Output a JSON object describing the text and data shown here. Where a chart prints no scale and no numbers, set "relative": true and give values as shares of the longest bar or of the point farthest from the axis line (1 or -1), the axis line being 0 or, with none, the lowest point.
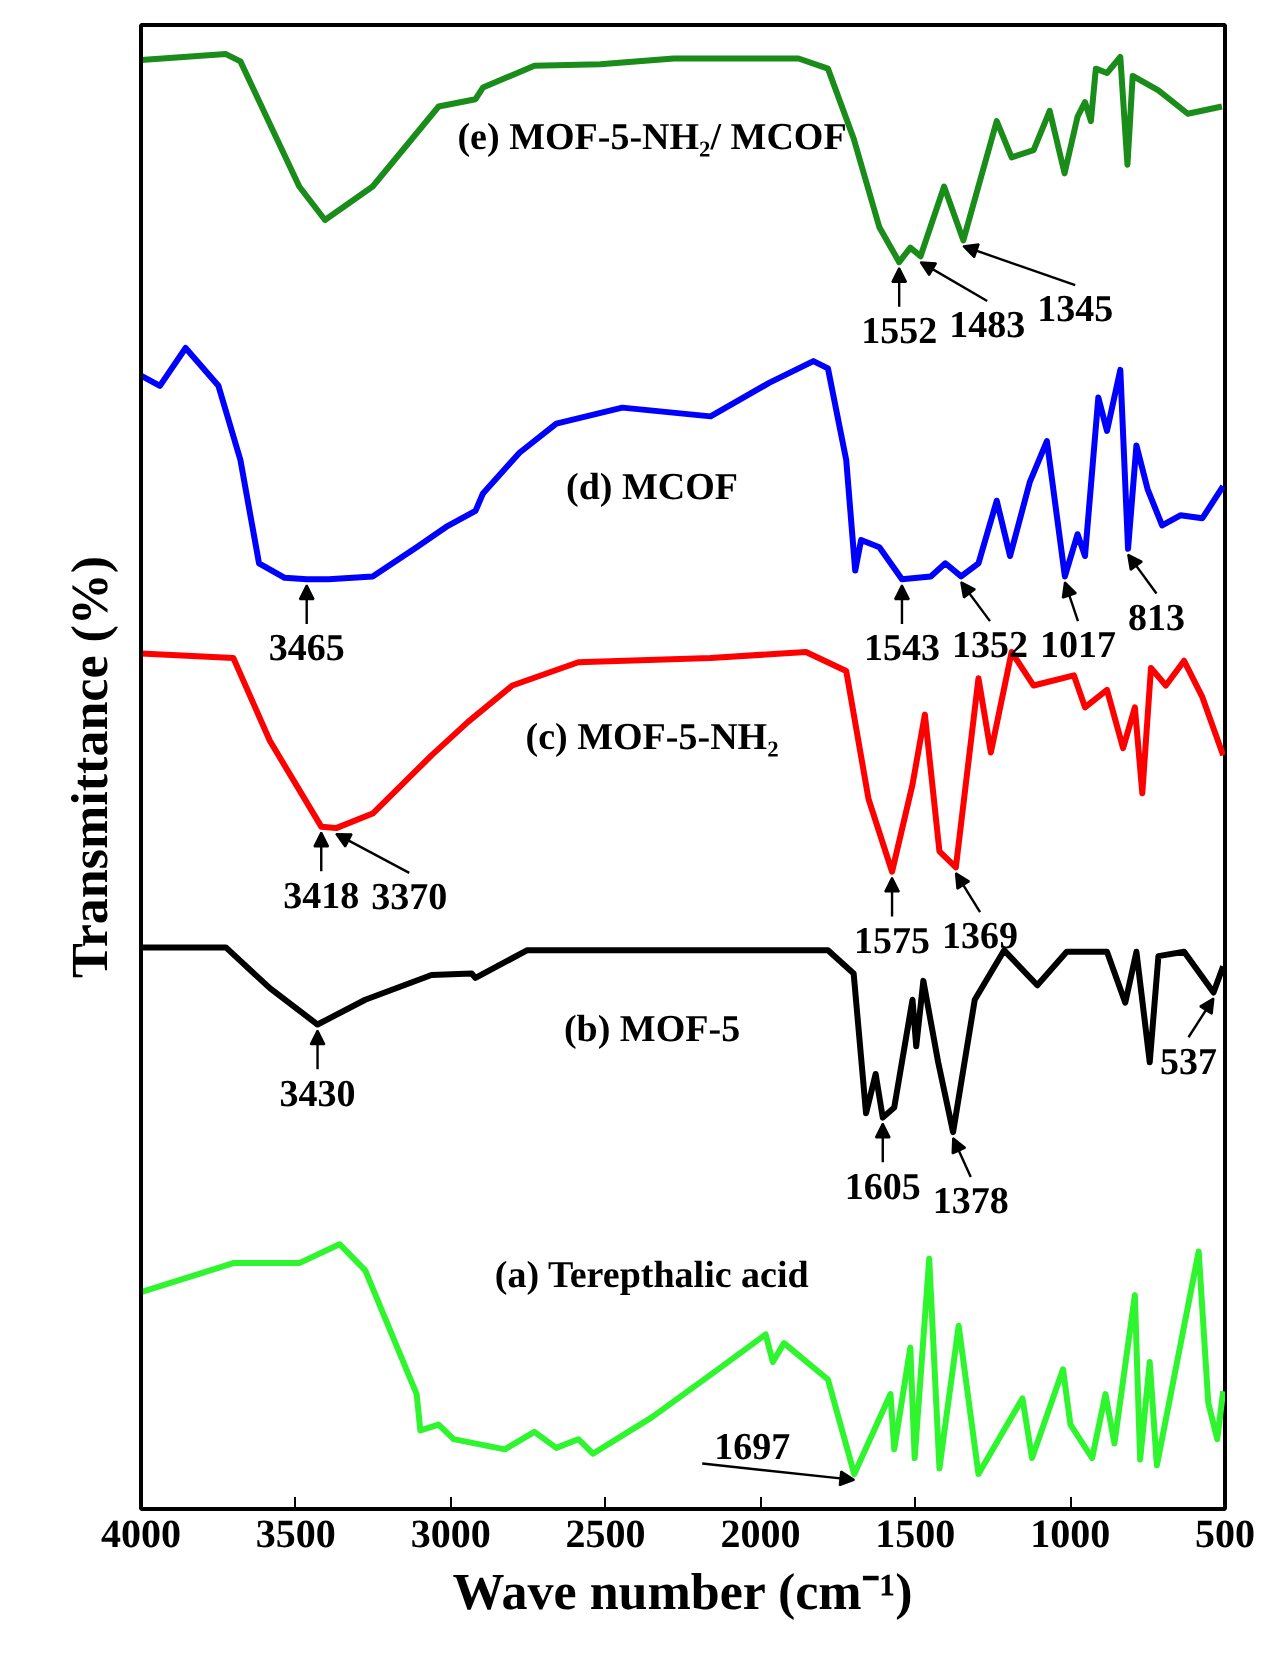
{
  "chart_data": {
    "type": "line",
    "relative": true,
    "xlabel": "Wave number (cm⁻¹)",
    "ylabel": "Transmittance (%)",
    "xlim": [
      4000,
      500
    ],
    "xticks": [
      4000,
      3500,
      3000,
      2500,
      2000,
      1500,
      1000,
      500
    ],
    "grid": false,
    "marker": "none",
    "line_style": "solid",
    "series": [
      {
        "name": "(e) MOF-5-NH₂/ MCOF",
        "color": "#1a8c1a",
        "x": [
          4000,
          3726,
          3679,
          3584,
          3489,
          3406,
          3252,
          3039,
          2920,
          2896,
          2730,
          2517,
          2280,
          1877,
          1782,
          1699,
          1616,
          1552,
          1516,
          1483,
          1407,
          1345,
          1237,
          1189,
          1118,
          1066,
          1018,
          976,
          952,
          933,
          917,
          881,
          838,
          815,
          798,
          715,
          620,
          510
        ],
        "values": [
          0.996,
          1.0,
          0.995,
          0.952,
          0.909,
          0.886,
          0.909,
          0.964,
          0.969,
          0.977,
          0.992,
          0.993,
          0.997,
          0.997,
          0.99,
          0.942,
          0.881,
          0.857,
          0.867,
          0.861,
          0.909,
          0.872,
          0.954,
          0.929,
          0.934,
          0.961,
          0.918,
          0.957,
          0.967,
          0.954,
          0.99,
          0.987,
          0.998,
          0.924,
          0.985,
          0.975,
          0.959,
          0.964
        ]
      },
      {
        "name": "(d) MCOF",
        "color": "#0000ff",
        "x": [
          4000,
          3939,
          3856,
          3750,
          3679,
          3619,
          3536,
          3465,
          3394,
          3252,
          3110,
          3015,
          2920,
          2896,
          2778,
          2659,
          2446,
          2161,
          1972,
          1829,
          1782,
          1723,
          1694,
          1675,
          1616,
          1543,
          1450,
          1403,
          1352,
          1296,
          1237,
          1194,
          1130,
          1075,
          1017,
          976,
          952,
          909,
          881,
          838,
          813,
          786,
          750,
          703,
          644,
          573,
          506
        ],
        "values": [
          0.779,
          0.772,
          0.798,
          0.772,
          0.721,
          0.65,
          0.64,
          0.639,
          0.639,
          0.641,
          0.661,
          0.675,
          0.686,
          0.698,
          0.726,
          0.746,
          0.757,
          0.751,
          0.774,
          0.789,
          0.784,
          0.721,
          0.645,
          0.666,
          0.661,
          0.639,
          0.641,
          0.65,
          0.641,
          0.65,
          0.693,
          0.655,
          0.706,
          0.734,
          0.641,
          0.67,
          0.655,
          0.764,
          0.741,
          0.783,
          0.66,
          0.731,
          0.701,
          0.676,
          0.683,
          0.681,
          0.703
        ]
      },
      {
        "name": "(c) MOF-5-NH₂",
        "color": "#ff0000",
        "x": [
          4000,
          3702,
          3584,
          3418,
          3370,
          3252,
          3062,
          2944,
          2801,
          2588,
          2161,
          1853,
          1723,
          1651,
          1575,
          1509,
          1469,
          1422,
          1369,
          1296,
          1256,
          1189,
          1118,
          988,
          952,
          881,
          829,
          791,
          767,
          739,
          691,
          632,
          573,
          506
        ],
        "values": [
          0.588,
          0.585,
          0.528,
          0.469,
          0.468,
          0.478,
          0.518,
          0.541,
          0.566,
          0.582,
          0.585,
          0.589,
          0.576,
          0.488,
          0.438,
          0.498,
          0.546,
          0.452,
          0.441,
          0.571,
          0.52,
          0.589,
          0.566,
          0.573,
          0.551,
          0.563,
          0.523,
          0.551,
          0.492,
          0.578,
          0.566,
          0.583,
          0.558,
          0.518
        ]
      },
      {
        "name": "(b) MOF-5",
        "color": "#000000",
        "x": [
          4000,
          3726,
          3584,
          3430,
          3276,
          3062,
          2932,
          2920,
          2754,
          1782,
          1699,
          1659,
          1628,
          1605,
          1568,
          1509,
          1497,
          1474,
          1426,
          1378,
          1308,
          1213,
          1106,
          1011,
          881,
          822,
          786,
          743,
          715,
          632,
          537,
          506
        ],
        "values": [
          0.386,
          0.386,
          0.358,
          0.333,
          0.35,
          0.367,
          0.368,
          0.365,
          0.384,
          0.384,
          0.368,
          0.272,
          0.299,
          0.269,
          0.276,
          0.35,
          0.318,
          0.363,
          0.307,
          0.259,
          0.35,
          0.384,
          0.36,
          0.383,
          0.383,
          0.348,
          0.383,
          0.307,
          0.38,
          0.383,
          0.355,
          0.373
        ]
      },
      {
        "name": "(a) Terepthalic acid",
        "color": "#2ef52e",
        "x": [
          4000,
          3702,
          3489,
          3359,
          3276,
          3110,
          3098,
          3039,
          2991,
          2825,
          2730,
          2659,
          2588,
          2541,
          2351,
          2137,
          1983,
          1960,
          1924,
          1782,
          1697,
          1580,
          1568,
          1516,
          1502,
          1455,
          1422,
          1360,
          1296,
          1154,
          1123,
          1023,
          999,
          929,
          886,
          857,
          791,
          774,
          743,
          720,
          585,
          554,
          525,
          506
        ],
        "values": [
          0.149,
          0.169,
          0.169,
          0.182,
          0.164,
          0.079,
          0.054,
          0.058,
          0.048,
          0.041,
          0.053,
          0.042,
          0.048,
          0.038,
          0.063,
          0.096,
          0.12,
          0.101,
          0.114,
          0.089,
          0.024,
          0.079,
          0.041,
          0.111,
          0.035,
          0.172,
          0.028,
          0.126,
          0.024,
          0.076,
          0.035,
          0.096,
          0.058,
          0.035,
          0.079,
          0.045,
          0.147,
          0.034,
          0.101,
          0.03,
          0.177,
          0.073,
          0.048,
          0.081
        ]
      }
    ],
    "annotations": [
      {
        "text": "1552",
        "x": 1552,
        "y": 0.857
      },
      {
        "text": "1483",
        "x": 1483,
        "y": 0.861
      },
      {
        "text": "1345",
        "x": 1345,
        "y": 0.872
      },
      {
        "text": "3465",
        "x": 3465,
        "y": 0.639
      },
      {
        "text": "1543",
        "x": 1543,
        "y": 0.639
      },
      {
        "text": "1352",
        "x": 1352,
        "y": 0.641
      },
      {
        "text": "1017",
        "x": 1017,
        "y": 0.641
      },
      {
        "text": "813",
        "x": 813,
        "y": 0.66
      },
      {
        "text": "3418",
        "x": 3418,
        "y": 0.469
      },
      {
        "text": "3370",
        "x": 3370,
        "y": 0.468
      },
      {
        "text": "1575",
        "x": 1575,
        "y": 0.438
      },
      {
        "text": "1369",
        "x": 1369,
        "y": 0.441
      },
      {
        "text": "3430",
        "x": 3430,
        "y": 0.333
      },
      {
        "text": "1605",
        "x": 1605,
        "y": 0.269
      },
      {
        "text": "1378",
        "x": 1378,
        "y": 0.259
      },
      {
        "text": "537",
        "x": 537,
        "y": 0.355
      },
      {
        "text": "1697",
        "x": 1697,
        "y": 0.024
      }
    ]
  }
}
